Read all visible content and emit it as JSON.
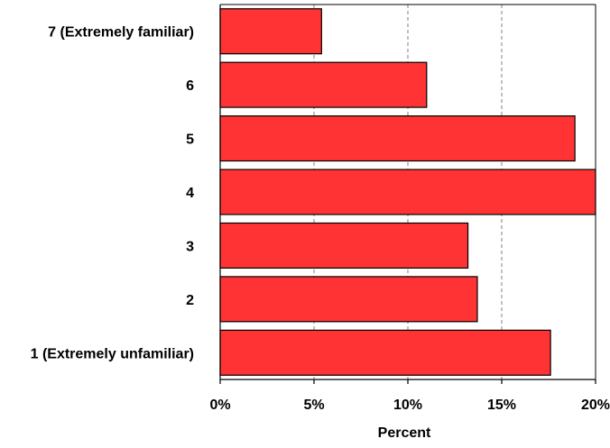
{
  "chart_data": {
    "type": "bar",
    "orientation": "horizontal",
    "categories": [
      "7 (Extremely familiar)",
      "6",
      "5",
      "4",
      "3",
      "2",
      "1 (Extremely unfamiliar)"
    ],
    "values": [
      5.4,
      11.0,
      18.9,
      20.0,
      13.2,
      13.7,
      17.6
    ],
    "title": "",
    "xlabel": "Percent",
    "ylabel": "",
    "xlim": [
      0,
      20
    ],
    "x_ticks": [
      {
        "value": 0,
        "label": "0%"
      },
      {
        "value": 5,
        "label": "5%"
      },
      {
        "value": 10,
        "label": "10%"
      },
      {
        "value": 15,
        "label": "15%"
      },
      {
        "value": 20,
        "label": "20%"
      }
    ],
    "grid": "vertical dashed",
    "legend": "none",
    "bar_color": "#ff3333",
    "bar_edge_color": "#000000",
    "grid_color": "#808080"
  }
}
